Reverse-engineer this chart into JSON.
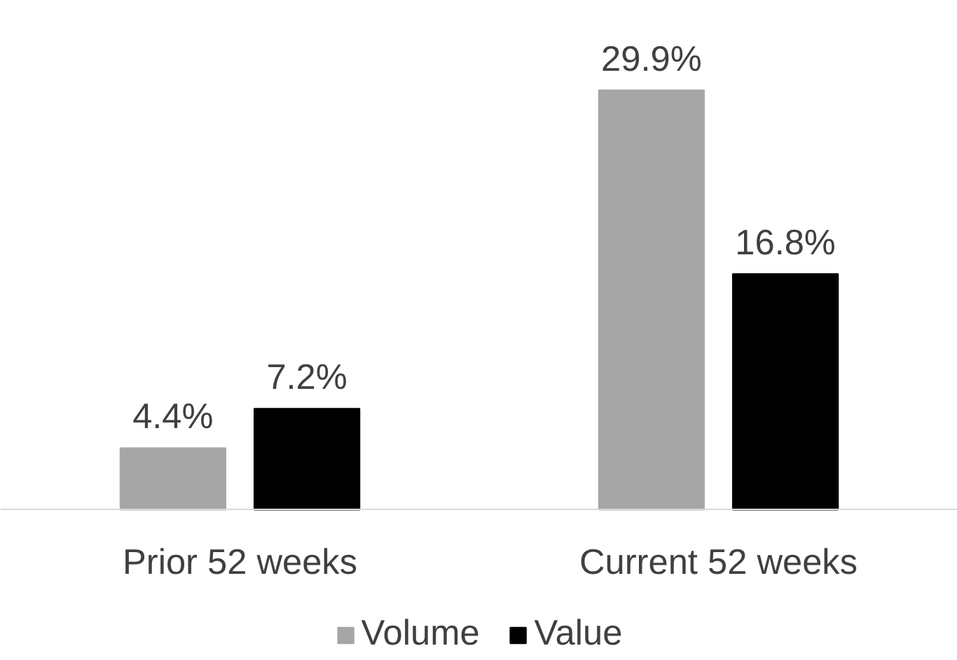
{
  "chart_data": {
    "type": "bar",
    "categories": [
      "Prior 52 weeks",
      "Current 52 weeks"
    ],
    "series": [
      {
        "name": "Volume",
        "color": "#a6a6a6",
        "values": [
          4.4,
          29.9
        ],
        "value_labels": [
          "4.4%",
          "29.9%"
        ]
      },
      {
        "name": "Value",
        "color": "#000000",
        "values": [
          7.2,
          16.8
        ],
        "value_labels": [
          "7.2%",
          "16.8%"
        ]
      }
    ],
    "legend": "bottom"
  }
}
